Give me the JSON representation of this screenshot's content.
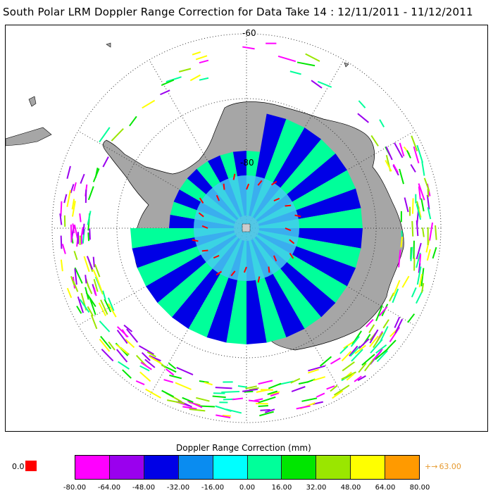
{
  "title": "South Polar LRM Doppler Range Correction for Data Take 14 : 12/11/2011 - 11/12/2011",
  "map": {
    "projection": "south polar stereographic",
    "lat_labels": [
      "-60",
      "-80"
    ],
    "colors": {
      "land": "#a6a6a6",
      "graticule": "#333333",
      "coast": "#000000"
    }
  },
  "legend": {
    "title": "Doppler Range Correction (mm)",
    "zero_label": "0.0",
    "zero_color": "#ff0000",
    "over_label": "63.00",
    "over_color": "#e69a30",
    "ticks": [
      "-80.00",
      "-64.00",
      "-48.00",
      "-32.00",
      "-16.00",
      "0.00",
      "16.00",
      "32.00",
      "48.00",
      "64.00",
      "80.00"
    ],
    "colors": [
      "#ff00ff",
      "#9a00ee",
      "#0000e6",
      "#0a8cf0",
      "#00ffff",
      "#00ff9a",
      "#00e600",
      "#9ae600",
      "#ffff00",
      "#ff9a00"
    ]
  }
}
